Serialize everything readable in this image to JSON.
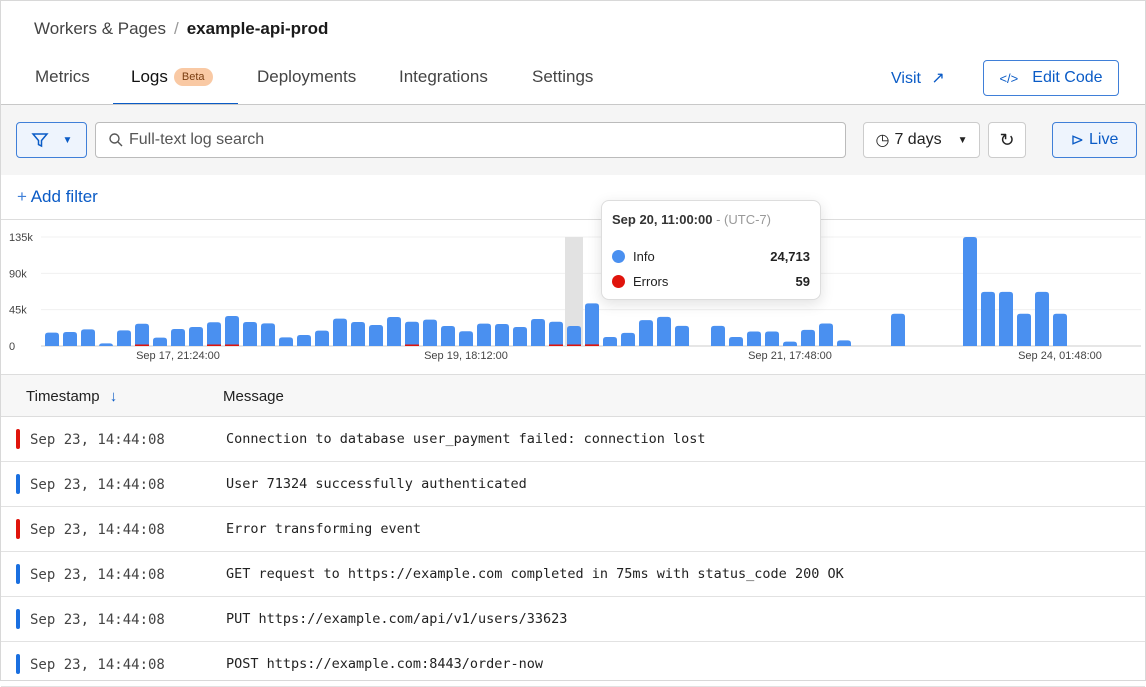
{
  "breadcrumb": {
    "parent": "Workers & Pages",
    "current": "example-api-prod"
  },
  "tabs": [
    {
      "label": "Metrics"
    },
    {
      "label": "Logs",
      "badge": "Beta",
      "active": true
    },
    {
      "label": "Deployments"
    },
    {
      "label": "Integrations"
    },
    {
      "label": "Settings"
    }
  ],
  "header_actions": {
    "visit": "Visit",
    "edit_code": "Edit Code"
  },
  "toolbar": {
    "search_placeholder": "Full-text log search",
    "time_range": "7 days",
    "live": "Live"
  },
  "add_filter": "Add filter",
  "colors": {
    "info": "#4a90f0",
    "errors": "#e0140c",
    "accent": "#0a5bc6"
  },
  "chart_data": {
    "type": "bar",
    "stacked": true,
    "y_ticks": [
      "0",
      "45k",
      "90k",
      "135k"
    ],
    "ylim": [
      0,
      135000
    ],
    "x_tick_labels": [
      {
        "label": "Sep 17, 21:24:00",
        "index": 7
      },
      {
        "label": "Sep 19, 18:12:00",
        "index": 23
      },
      {
        "label": "Sep 21, 17:48:00",
        "index": 41
      },
      {
        "label": "Sep 24, 01:48:00",
        "index": 56
      }
    ],
    "series": [
      {
        "name": "Info",
        "values": [
          16500,
          17300,
          20600,
          3300,
          19400,
          26800,
          10300,
          21000,
          23500,
          28900,
          36700,
          29700,
          28000,
          10700,
          13600,
          19000,
          33900,
          29700,
          26000,
          35900,
          29700,
          32600,
          24800,
          18200,
          27700,
          27200,
          23500,
          33400,
          29700,
          24713,
          50800,
          11200,
          16200,
          32000,
          36000,
          25000,
          0,
          25000,
          11200,
          17900,
          17900,
          5400,
          20000,
          27800,
          7000,
          0,
          0,
          39900,
          0,
          0,
          0,
          135000,
          67000,
          67000,
          40000,
          67000,
          40000
        ]
      },
      {
        "name": "Errors",
        "values": [
          0,
          0,
          0,
          0,
          0,
          800,
          0,
          0,
          0,
          500,
          400,
          0,
          0,
          0,
          0,
          0,
          0,
          0,
          0,
          0,
          300,
          0,
          0,
          0,
          0,
          0,
          0,
          0,
          300,
          59,
          2000,
          0,
          0,
          0,
          0,
          0,
          0,
          0,
          0,
          0,
          0,
          0,
          0,
          0,
          0,
          0,
          0,
          0,
          0,
          0,
          0,
          0,
          0,
          0,
          0,
          0,
          0
        ]
      }
    ],
    "highlight_index": 29
  },
  "tooltip": {
    "title": "Sep 20, 11:00:00",
    "tz": "- (UTC-7)",
    "rows": [
      {
        "label": "Info",
        "value": "24,713"
      },
      {
        "label": "Errors",
        "value": "59"
      }
    ]
  },
  "table": {
    "columns": [
      "Timestamp",
      "Message"
    ],
    "rows": [
      {
        "level": "error",
        "timestamp": "Sep 23, 14:44:08",
        "message": "Connection to database user_payment failed: connection lost"
      },
      {
        "level": "info",
        "timestamp": "Sep 23, 14:44:08",
        "message": "User 71324 successfully authenticated"
      },
      {
        "level": "error",
        "timestamp": "Sep 23, 14:44:08",
        "message": "Error transforming event"
      },
      {
        "level": "info",
        "timestamp": "Sep 23, 14:44:08",
        "message": "GET request to https://example.com completed in 75ms with status_code 200 OK"
      },
      {
        "level": "info",
        "timestamp": "Sep 23, 14:44:08",
        "message": "PUT https://example.com/api/v1/users/33623"
      },
      {
        "level": "info",
        "timestamp": "Sep 23, 14:44:08",
        "message": "POST https://example.com:8443/order-now"
      }
    ]
  }
}
